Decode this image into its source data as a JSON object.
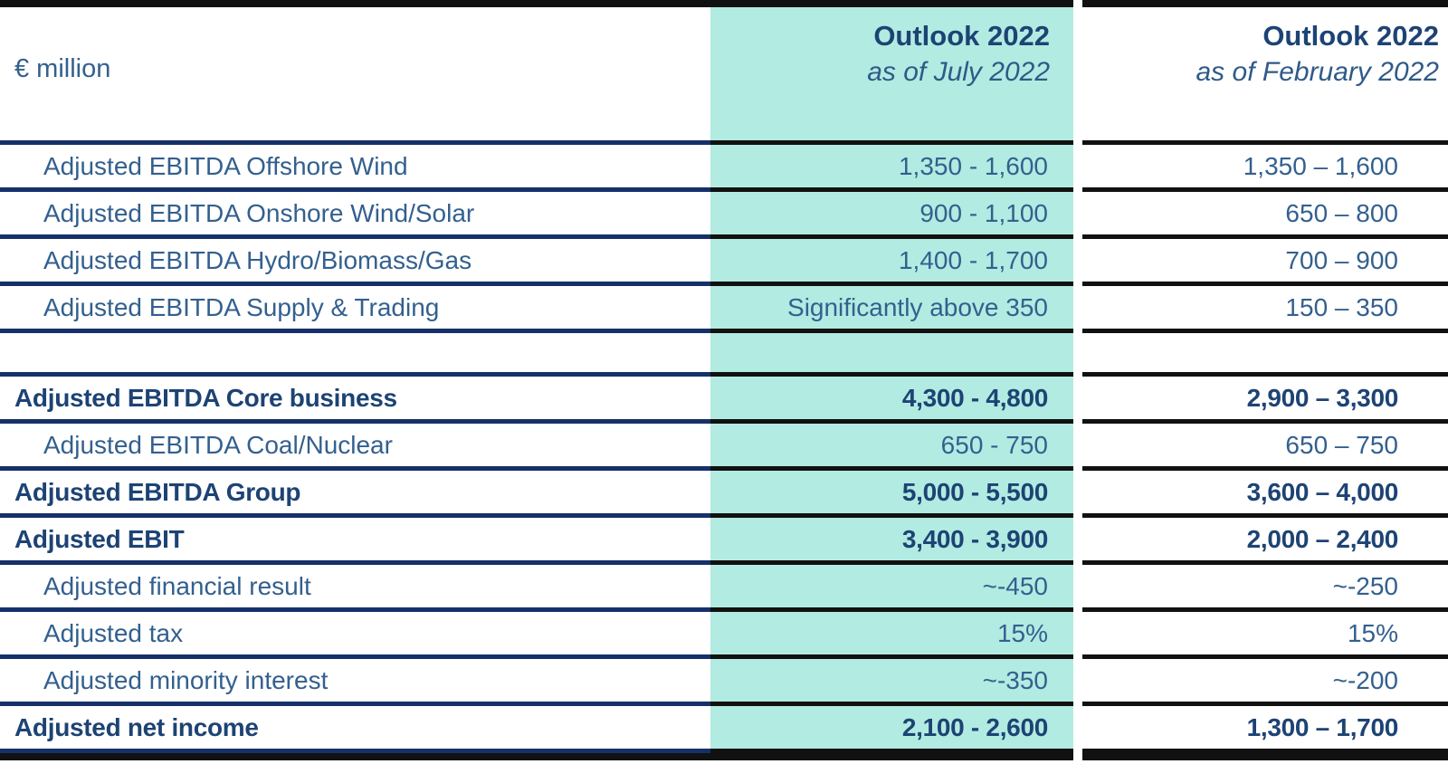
{
  "unit_label": "€ million",
  "columns": {
    "july": {
      "title": "Outlook 2022",
      "subtitle": "as of July 2022",
      "highlighted": true
    },
    "february": {
      "title": "Outlook 2022",
      "subtitle": "as of February 2022",
      "highlighted": false
    }
  },
  "colors": {
    "highlight_teal": "#b2ebe1",
    "navy_rule": "#16306a",
    "black_rule": "#111111",
    "text_regular": "#33608e",
    "text_bold": "#1d4374"
  },
  "rows": [
    {
      "label": "Adjusted EBITDA Offshore Wind",
      "july": "1,350 - 1,600",
      "feb": "1,350 – 1,600",
      "bold": false
    },
    {
      "label": "Adjusted EBITDA Onshore Wind/Solar",
      "july": "900 - 1,100",
      "feb": "650 – 800",
      "bold": false
    },
    {
      "label": "Adjusted EBITDA Hydro/Biomass/Gas",
      "july": "1,400 - 1,700",
      "feb": "700 – 900",
      "bold": false
    },
    {
      "label": "Adjusted EBITDA Supply & Trading",
      "july": "Significantly above 350",
      "feb": "150 – 350",
      "bold": false
    },
    {
      "label": "",
      "july": "",
      "feb": "",
      "bold": false
    },
    {
      "label": "Adjusted EBITDA Core business",
      "july": "4,300 - 4,800",
      "feb": "2,900 – 3,300",
      "bold": true
    },
    {
      "label": "Adjusted EBITDA Coal/Nuclear",
      "july": "650 - 750",
      "feb": "650 – 750",
      "bold": false
    },
    {
      "label": "Adjusted EBITDA Group",
      "july": "5,000 - 5,500",
      "feb": "3,600 – 4,000",
      "bold": true
    },
    {
      "label": "Adjusted EBIT",
      "july": "3,400 - 3,900",
      "feb": "2,000 – 2,400",
      "bold": true
    },
    {
      "label": "Adjusted financial result",
      "july": "~-450",
      "feb": "~-250",
      "bold": false
    },
    {
      "label": "Adjusted tax",
      "july": "15%",
      "feb": "15%",
      "bold": false
    },
    {
      "label": "Adjusted minority interest",
      "july": "~-350",
      "feb": "~-200",
      "bold": false
    },
    {
      "label": "Adjusted net income",
      "july": "2,100 - 2,600",
      "feb": "1,300 – 1,700",
      "bold": true
    }
  ]
}
